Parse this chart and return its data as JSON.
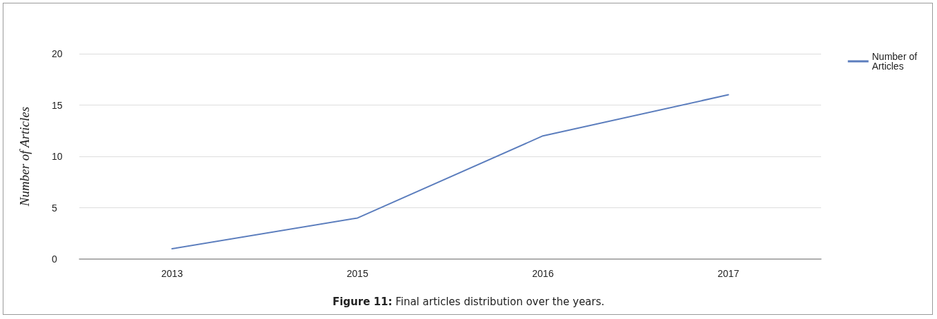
{
  "chart_data": {
    "type": "line",
    "ylabel": "Number of Articles",
    "categories": [
      "2013",
      "2015",
      "2016",
      "2017"
    ],
    "series": [
      {
        "name": "Number of Articles",
        "color": "#5b7dbd",
        "values": [
          1,
          4,
          12,
          16
        ]
      }
    ],
    "ylim": [
      0,
      20
    ],
    "yticks": [
      0,
      5,
      10,
      15,
      20
    ],
    "grid": "y",
    "legend": "top right",
    "marker": "none",
    "line_style": "solid",
    "annotations": [
      "Figure 11: Final articles distribution over the years."
    ]
  }
}
